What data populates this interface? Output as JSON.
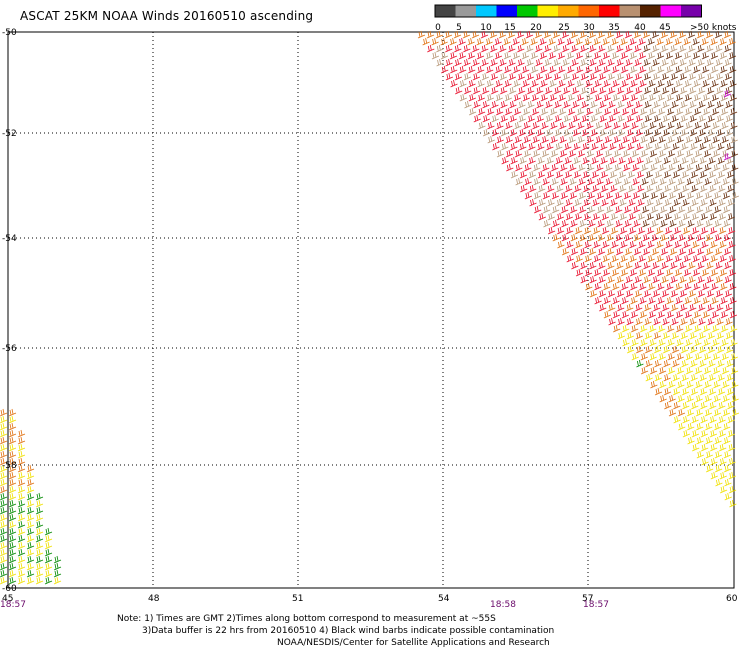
{
  "header": {
    "title": "ASCAT 25KM NOAA Winds 20160510 ascending"
  },
  "legend": {
    "units": ">50 knots",
    "swatches": [
      {
        "color": "#444444"
      },
      {
        "color": "#9a9a9a"
      },
      {
        "color": "#00c8ff"
      },
      {
        "color": "#0000ff"
      },
      {
        "color": "#00c800"
      },
      {
        "color": "#ffee00"
      },
      {
        "color": "#ffaa00"
      },
      {
        "color": "#ff6600"
      },
      {
        "color": "#ff0000"
      },
      {
        "color": "#b89070"
      },
      {
        "color": "#552200"
      },
      {
        "color": "#ff00ff"
      },
      {
        "color": "#7700aa"
      }
    ],
    "ticks": [
      "0",
      "5",
      "10",
      "15",
      "20",
      "25",
      "30",
      "35",
      "40",
      "45"
    ]
  },
  "map": {
    "lon_labels": [
      "45",
      "48",
      "51",
      "54",
      "57",
      "60"
    ],
    "lat_labels": [
      "-50",
      "-52",
      "-54",
      "-56",
      "-58",
      "-60"
    ],
    "time_labels": [
      "18:57",
      "18:58",
      "18:57"
    ],
    "barb_colors": {
      "red": "#e8102c",
      "tan": "#b89878",
      "brown": "#6a3010",
      "orange": "#e07010",
      "yellow": "#f0e000",
      "green": "#008800",
      "magenta": "#c000c0"
    }
  },
  "notes": {
    "line1": "Note: 1) Times are GMT 2)Times along bottom correspond to measurement at ~55S",
    "line2": "3)Data buffer is 22 hrs from 20160510 4) Black wind barbs indicate possible contamination",
    "line3": "NOAA/NESDIS/Center for Satellite Applications and Research"
  }
}
